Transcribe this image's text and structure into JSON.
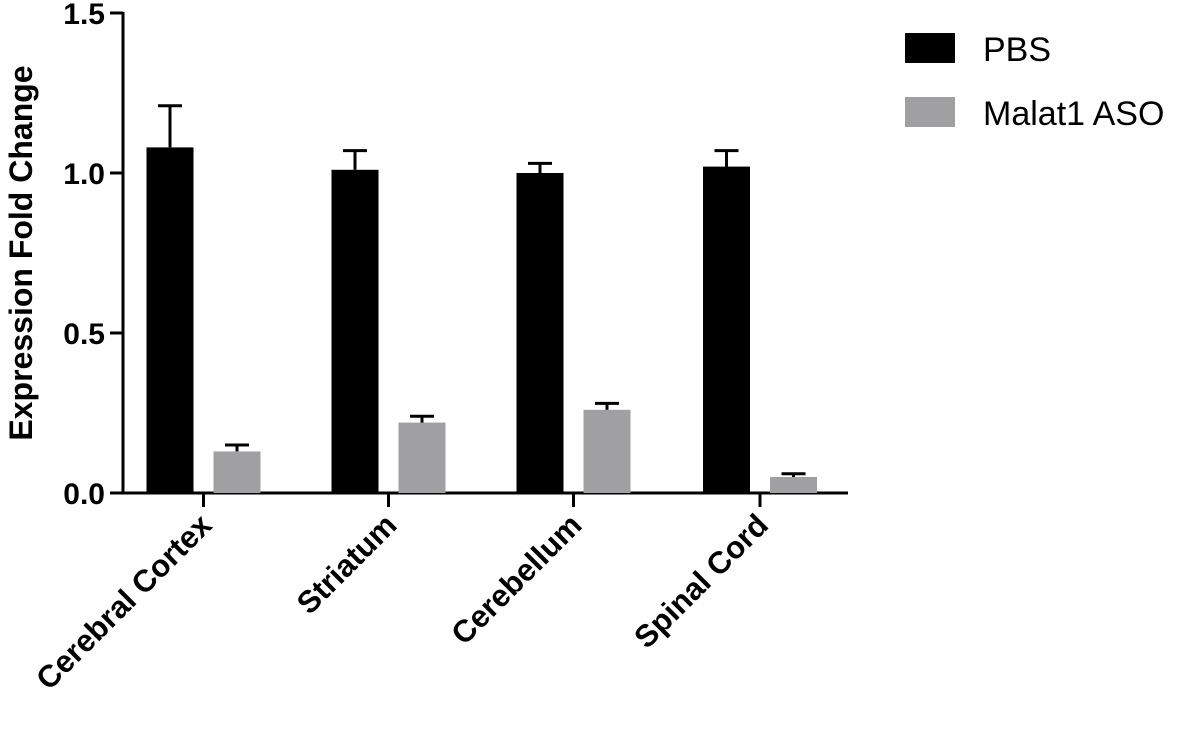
{
  "chart_data": {
    "type": "bar",
    "title": "",
    "xlabel": "",
    "ylabel": "Expression Fold Change",
    "ylim": [
      0,
      1.5
    ],
    "yticks": [
      "0.0",
      "0.5",
      "1.0",
      "1.5"
    ],
    "ytick_values": [
      0,
      0.5,
      1.0,
      1.5
    ],
    "categories": [
      "Cerebral Cortex",
      "Striatum",
      "Cerebellum",
      "Spinal Cord"
    ],
    "legend_position": "top-right",
    "grid": false,
    "series": [
      {
        "name": "PBS",
        "color": "#000000",
        "values": [
          1.08,
          1.01,
          1.0,
          1.02
        ],
        "errors": [
          0.13,
          0.06,
          0.03,
          0.05
        ]
      },
      {
        "name": "Malat1 ASO",
        "color": "#a0a0a2",
        "values": [
          0.13,
          0.22,
          0.26,
          0.05
        ],
        "errors": [
          0.02,
          0.02,
          0.02,
          0.01
        ]
      }
    ]
  }
}
